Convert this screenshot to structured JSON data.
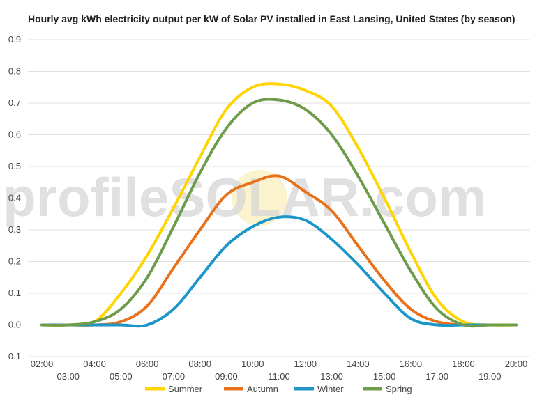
{
  "chart_data": {
    "type": "line",
    "title": "Hourly avg kWh electricity output per kW of Solar PV installed in East Lansing, United States (by season)",
    "xlabel": "",
    "ylabel": "",
    "ylim": [
      -0.1,
      0.9
    ],
    "yticks": [
      "0.9",
      "0.8",
      "0.7",
      "0.6",
      "0.5",
      "0.4",
      "0.3",
      "0.2",
      "0.1",
      "0.0",
      "-0.1"
    ],
    "x": [
      "02:00",
      "03:00",
      "04:00",
      "05:00",
      "06:00",
      "07:00",
      "08:00",
      "09:00",
      "10:00",
      "11:00",
      "12:00",
      "13:00",
      "14:00",
      "15:00",
      "16:00",
      "17:00",
      "18:00",
      "19:00",
      "20:00"
    ],
    "series": [
      {
        "name": "Summer",
        "color": "#FFD400",
        "values": [
          0.0,
          0.0,
          0.01,
          0.1,
          0.22,
          0.37,
          0.53,
          0.68,
          0.75,
          0.76,
          0.74,
          0.69,
          0.56,
          0.4,
          0.23,
          0.08,
          0.01,
          0.0,
          0.0
        ]
      },
      {
        "name": "Autumn",
        "color": "#E8721C",
        "values": [
          0.0,
          0.0,
          0.0,
          0.01,
          0.06,
          0.18,
          0.3,
          0.41,
          0.45,
          0.47,
          0.42,
          0.36,
          0.25,
          0.14,
          0.05,
          0.01,
          0.0,
          0.0,
          0.0
        ]
      },
      {
        "name": "Winter",
        "color": "#1C96C8",
        "values": [
          0.0,
          0.0,
          0.0,
          0.0,
          0.0,
          0.05,
          0.15,
          0.25,
          0.31,
          0.34,
          0.33,
          0.27,
          0.19,
          0.1,
          0.02,
          0.0,
          0.0,
          0.0,
          0.0
        ]
      },
      {
        "name": "Spring",
        "color": "#6E9C4A",
        "values": [
          0.0,
          0.0,
          0.01,
          0.05,
          0.15,
          0.31,
          0.48,
          0.62,
          0.7,
          0.71,
          0.68,
          0.6,
          0.47,
          0.32,
          0.17,
          0.05,
          0.0,
          0.0,
          0.0
        ]
      }
    ],
    "grid": "horizontal",
    "legend_placement": "bottom",
    "watermark": "profileSOLAR.com"
  }
}
